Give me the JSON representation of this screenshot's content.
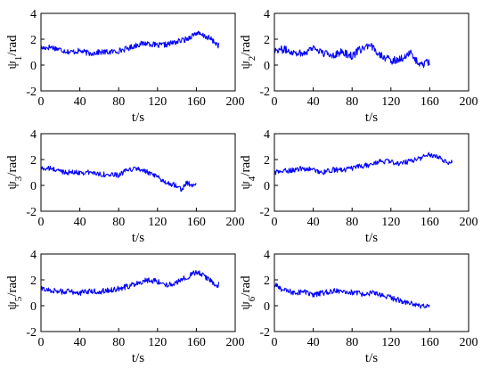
{
  "colors": {
    "series": "#0000ff",
    "axes": "#000000",
    "background": "#ffffff"
  },
  "chart_data": [
    {
      "type": "line",
      "ylabel_base": "ψ",
      "ylabel_sub": "1",
      "ylabel_unit": "/rad",
      "xlabel": "t/s",
      "xlim": [
        0,
        200
      ],
      "ylim": [
        -2,
        4
      ],
      "xticks": [
        0,
        40,
        80,
        120,
        160,
        200
      ],
      "yticks": [
        -2,
        0,
        2,
        4
      ],
      "grid": false,
      "series": [
        {
          "x": [
            0,
            10,
            20,
            30,
            40,
            50,
            60,
            70,
            80,
            90,
            100,
            110,
            120,
            130,
            140,
            150,
            160,
            165,
            170,
            175,
            180,
            183
          ],
          "y": [
            1.3,
            1.4,
            1.2,
            1.0,
            1.1,
            0.9,
            1.0,
            1.0,
            1.1,
            1.3,
            1.6,
            1.7,
            1.5,
            1.6,
            1.8,
            2.0,
            2.5,
            2.3,
            2.2,
            2.0,
            1.7,
            1.5
          ],
          "noise": 0.22
        }
      ]
    },
    {
      "type": "line",
      "ylabel_base": "ψ",
      "ylabel_sub": "2",
      "ylabel_unit": "/rad",
      "xlabel": "t/s",
      "xlim": [
        0,
        200
      ],
      "ylim": [
        -2,
        4
      ],
      "xticks": [
        0,
        40,
        80,
        120,
        160,
        200
      ],
      "yticks": [
        -2,
        0,
        2,
        4
      ],
      "grid": false,
      "series": [
        {
          "x": [
            0,
            10,
            20,
            30,
            40,
            50,
            60,
            70,
            80,
            90,
            100,
            110,
            120,
            130,
            140,
            150,
            155,
            160
          ],
          "y": [
            1.2,
            1.2,
            1.0,
            0.9,
            1.4,
            0.9,
            0.8,
            1.0,
            0.7,
            1.3,
            1.4,
            0.8,
            0.3,
            0.5,
            0.9,
            0.0,
            0.1,
            0.3
          ],
          "noise": 0.3
        }
      ]
    },
    {
      "type": "line",
      "ylabel_base": "ψ",
      "ylabel_sub": "3",
      "ylabel_unit": "/rad",
      "xlabel": "t/s",
      "xlim": [
        0,
        200
      ],
      "ylim": [
        -2,
        4
      ],
      "xticks": [
        0,
        40,
        80,
        120,
        160,
        200
      ],
      "yticks": [
        -2,
        0,
        2,
        4
      ],
      "grid": false,
      "series": [
        {
          "x": [
            0,
            10,
            20,
            30,
            40,
            50,
            60,
            70,
            80,
            90,
            100,
            110,
            120,
            130,
            140,
            145,
            150,
            155,
            160
          ],
          "y": [
            1.3,
            1.3,
            1.1,
            1.0,
            1.0,
            1.0,
            0.9,
            0.8,
            0.8,
            1.2,
            1.3,
            1.0,
            0.6,
            0.2,
            0.0,
            -0.3,
            0.2,
            0.0,
            0.1
          ],
          "noise": 0.2
        }
      ]
    },
    {
      "type": "line",
      "ylabel_base": "ψ",
      "ylabel_sub": "4",
      "ylabel_unit": "/rad",
      "xlabel": "t/s",
      "xlim": [
        0,
        200
      ],
      "ylim": [
        -2,
        4
      ],
      "xticks": [
        0,
        40,
        80,
        120,
        160,
        200
      ],
      "yticks": [
        -2,
        0,
        2,
        4
      ],
      "grid": false,
      "series": [
        {
          "x": [
            0,
            10,
            20,
            30,
            40,
            50,
            60,
            70,
            80,
            90,
            100,
            110,
            120,
            130,
            140,
            150,
            160,
            170,
            175,
            180,
            183
          ],
          "y": [
            1.0,
            1.1,
            1.2,
            1.3,
            1.2,
            1.0,
            1.2,
            1.2,
            1.3,
            1.5,
            1.6,
            1.9,
            1.8,
            1.7,
            1.9,
            2.1,
            2.4,
            2.2,
            1.9,
            1.8,
            1.8
          ],
          "noise": 0.2
        }
      ]
    },
    {
      "type": "line",
      "ylabel_base": "ψ",
      "ylabel_sub": "5",
      "ylabel_unit": "/rad",
      "xlabel": "t/s",
      "xlim": [
        0,
        200
      ],
      "ylim": [
        -2,
        4
      ],
      "xticks": [
        0,
        40,
        80,
        120,
        160,
        200
      ],
      "yticks": [
        -2,
        0,
        2,
        4
      ],
      "grid": false,
      "series": [
        {
          "x": [
            0,
            10,
            20,
            30,
            40,
            50,
            60,
            70,
            80,
            90,
            100,
            110,
            120,
            130,
            140,
            150,
            160,
            165,
            170,
            175,
            180,
            183
          ],
          "y": [
            1.3,
            1.2,
            1.1,
            1.1,
            1.0,
            1.1,
            1.1,
            1.2,
            1.3,
            1.5,
            1.8,
            2.0,
            1.9,
            1.6,
            1.8,
            2.2,
            2.6,
            2.5,
            2.2,
            1.9,
            1.5,
            1.6
          ],
          "noise": 0.22
        }
      ]
    },
    {
      "type": "line",
      "ylabel_base": "ψ",
      "ylabel_sub": "6",
      "ylabel_unit": "/rad",
      "xlabel": "t/s",
      "xlim": [
        0,
        200
      ],
      "ylim": [
        -2,
        4
      ],
      "xticks": [
        0,
        40,
        80,
        120,
        160,
        200
      ],
      "yticks": [
        -2,
        0,
        2,
        4
      ],
      "grid": false,
      "series": [
        {
          "x": [
            0,
            10,
            20,
            30,
            40,
            50,
            60,
            70,
            80,
            90,
            100,
            110,
            120,
            130,
            140,
            145,
            150,
            155,
            160
          ],
          "y": [
            1.6,
            1.2,
            1.0,
            1.1,
            0.8,
            1.0,
            1.1,
            1.2,
            1.0,
            0.9,
            1.0,
            0.8,
            0.6,
            0.4,
            0.2,
            0.1,
            -0.1,
            0.0,
            0.1
          ],
          "noise": 0.22
        }
      ]
    }
  ]
}
